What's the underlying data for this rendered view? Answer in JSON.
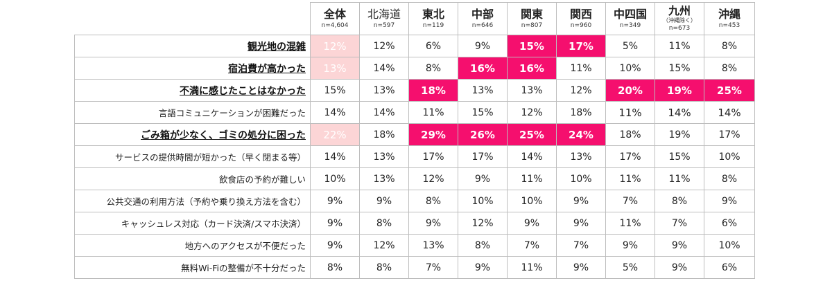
{
  "chart_data": {
    "type": "table",
    "colors": {
      "hot": "#f50f6e",
      "soft": "#fcd5d6",
      "grid": "#bdbdbd"
    },
    "columns": [
      {
        "name": "全体",
        "sub": "",
        "n": "n=4,604"
      },
      {
        "name": "北海道",
        "sub": "",
        "n": "n=597"
      },
      {
        "name": "東北",
        "sub": "",
        "n": "n=119"
      },
      {
        "name": "中部",
        "sub": "",
        "n": "n=646"
      },
      {
        "name": "関東",
        "sub": "",
        "n": "n=807"
      },
      {
        "name": "関西",
        "sub": "",
        "n": "n=960"
      },
      {
        "name": "中四国",
        "sub": "",
        "n": "n=349"
      },
      {
        "name": "九州",
        "sub": "（沖縄除く）",
        "n": "n=673"
      },
      {
        "name": "沖縄",
        "sub": "",
        "n": "n=453"
      }
    ],
    "rows": [
      {
        "label": "観光地の混雑",
        "bold": true,
        "values": [
          "12%",
          "12%",
          "6%",
          "9%",
          "15%",
          "17%",
          "5%",
          "11%",
          "8%"
        ],
        "hl": [
          "soft",
          "",
          "",
          "",
          "hot",
          "hot",
          "",
          "",
          ""
        ]
      },
      {
        "label": "宿泊費が高かった",
        "bold": true,
        "values": [
          "13%",
          "14%",
          "8%",
          "16%",
          "16%",
          "11%",
          "10%",
          "15%",
          "8%"
        ],
        "hl": [
          "soft",
          "",
          "",
          "hot",
          "hot",
          "",
          "",
          "",
          ""
        ]
      },
      {
        "label": "不満に感じたことはなかった",
        "bold": true,
        "values": [
          "15%",
          "13%",
          "18%",
          "13%",
          "13%",
          "12%",
          "20%",
          "19%",
          "25%"
        ],
        "hl": [
          "",
          "",
          "hot",
          "",
          "",
          "",
          "hot",
          "hot",
          "hot"
        ]
      },
      {
        "label": "言語コミュニケーションが困難だった",
        "bold": false,
        "values": [
          "14%",
          "14%",
          "11%",
          "15%",
          "12%",
          "18%",
          "11%",
          "14%",
          "14%"
        ],
        "hl": [
          "",
          "",
          "",
          "",
          "",
          "",
          "big",
          "big",
          "big"
        ]
      },
      {
        "label": "ごみ箱が少なく、ゴミの処分に困った",
        "bold": true,
        "values": [
          "22%",
          "18%",
          "29%",
          "26%",
          "25%",
          "24%",
          "18%",
          "19%",
          "17%"
        ],
        "hl": [
          "soft",
          "",
          "hot",
          "hot",
          "hot",
          "hot",
          "",
          "",
          ""
        ]
      },
      {
        "label": "サービスの提供時間が短かった（早く閉まる等）",
        "bold": false,
        "values": [
          "14%",
          "13%",
          "17%",
          "17%",
          "14%",
          "13%",
          "17%",
          "15%",
          "10%"
        ],
        "hl": [
          "",
          "",
          "",
          "",
          "",
          "",
          "",
          "",
          ""
        ]
      },
      {
        "label": "飲食店の予約が難しい",
        "bold": false,
        "values": [
          "10%",
          "13%",
          "12%",
          "9%",
          "11%",
          "10%",
          "11%",
          "11%",
          "8%"
        ],
        "hl": [
          "",
          "",
          "",
          "",
          "",
          "",
          "",
          "",
          ""
        ]
      },
      {
        "label": "公共交通の利用方法（予約や乗り換え方法を含む）",
        "bold": false,
        "values": [
          "9%",
          "9%",
          "8%",
          "10%",
          "10%",
          "9%",
          "7%",
          "8%",
          "9%"
        ],
        "hl": [
          "",
          "",
          "",
          "",
          "",
          "",
          "",
          "",
          ""
        ]
      },
      {
        "label": "キャッシュレス対応（カード決済/スマホ決済）",
        "bold": false,
        "values": [
          "9%",
          "8%",
          "9%",
          "12%",
          "9%",
          "9%",
          "11%",
          "7%",
          "6%"
        ],
        "hl": [
          "",
          "",
          "",
          "",
          "",
          "",
          "",
          "",
          ""
        ]
      },
      {
        "label": "地方へのアクセスが不便だった",
        "bold": false,
        "values": [
          "9%",
          "12%",
          "13%",
          "8%",
          "7%",
          "7%",
          "9%",
          "9%",
          "10%"
        ],
        "hl": [
          "",
          "",
          "",
          "",
          "",
          "",
          "",
          "",
          ""
        ]
      },
      {
        "label": "無料Wi-Fiの整備が不十分だった",
        "bold": false,
        "values": [
          "8%",
          "8%",
          "7%",
          "9%",
          "11%",
          "9%",
          "5%",
          "9%",
          "6%"
        ],
        "hl": [
          "",
          "",
          "",
          "",
          "",
          "",
          "",
          "",
          ""
        ]
      }
    ]
  }
}
